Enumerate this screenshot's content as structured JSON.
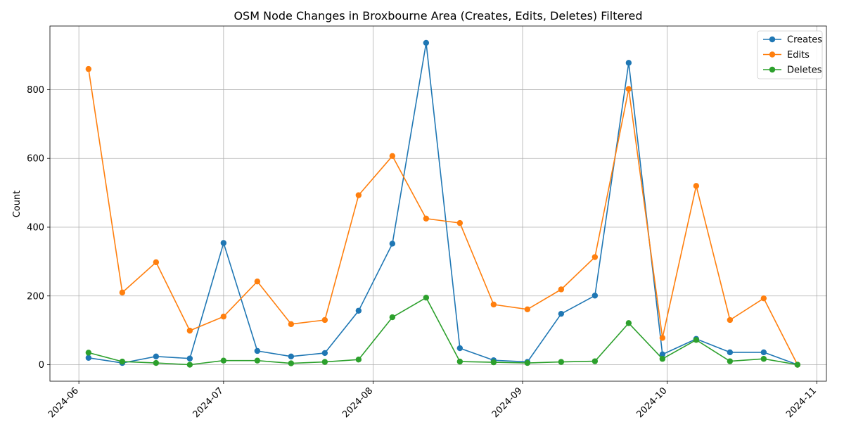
{
  "chart_data": {
    "type": "line",
    "title": "OSM Node Changes in Broxbourne Area (Creates, Edits, Deletes) Filtered",
    "xlabel": "",
    "ylabel": "Count",
    "x_type": "date",
    "xlim": [
      "2024-05-26",
      "2024-11-03"
    ],
    "ylim": [
      -48,
      985
    ],
    "x_ticks": [
      "2024-06",
      "2024-07",
      "2024-08",
      "2024-09",
      "2024-10",
      "2024-11"
    ],
    "y_ticks": [
      0,
      200,
      400,
      600,
      800
    ],
    "grid": true,
    "legend_position": "top-right",
    "x": [
      "2024-06-03",
      "2024-06-10",
      "2024-06-17",
      "2024-06-24",
      "2024-07-01",
      "2024-07-08",
      "2024-07-15",
      "2024-07-22",
      "2024-07-29",
      "2024-08-05",
      "2024-08-12",
      "2024-08-19",
      "2024-08-26",
      "2024-09-02",
      "2024-09-09",
      "2024-09-16",
      "2024-09-23",
      "2024-09-30",
      "2024-10-07",
      "2024-10-14",
      "2024-10-21",
      "2024-10-28"
    ],
    "series": [
      {
        "name": "Creates",
        "color": "#1f77b4",
        "values": [
          20,
          5,
          24,
          18,
          354,
          40,
          24,
          34,
          157,
          352,
          936,
          48,
          13,
          8,
          148,
          201,
          878,
          30,
          75,
          36,
          36,
          0
        ]
      },
      {
        "name": "Edits",
        "color": "#ff7f0e",
        "values": [
          860,
          210,
          298,
          99,
          140,
          242,
          118,
          130,
          493,
          607,
          425,
          412,
          175,
          161,
          219,
          313,
          802,
          78,
          520,
          130,
          193,
          0
        ]
      },
      {
        "name": "Deletes",
        "color": "#2ca02c",
        "values": [
          35,
          9,
          5,
          0,
          12,
          12,
          4,
          8,
          15,
          138,
          195,
          9,
          7,
          5,
          8,
          10,
          121,
          17,
          72,
          10,
          17,
          0
        ]
      }
    ]
  }
}
